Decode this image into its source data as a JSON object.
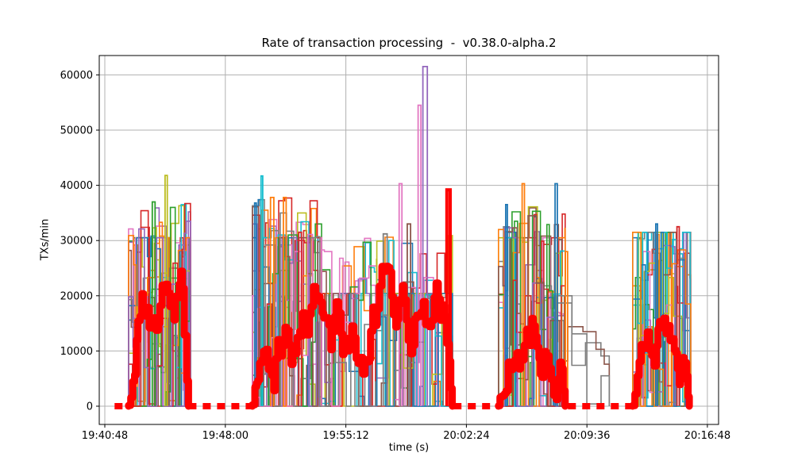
{
  "chart_data": {
    "type": "line",
    "style": "step",
    "title": "Rate of transaction processing  -  v0.38.0-alpha.2",
    "xlabel": "time (s)",
    "ylabel": "TXs/min",
    "grid": true,
    "legend": "none",
    "x_tick_labels": [
      "19:40:48",
      "19:48:00",
      "19:55:12",
      "20:02:24",
      "20:09:36",
      "20:16:48"
    ],
    "x_tick_seconds": [
      0,
      432,
      864,
      1296,
      1728,
      2160
    ],
    "y_tick_labels": [
      "0",
      "10000",
      "20000",
      "30000",
      "40000",
      "50000",
      "60000"
    ],
    "y_tick_values": [
      0,
      10000,
      20000,
      30000,
      40000,
      50000,
      60000
    ],
    "x_domain_seconds": [
      -20,
      2200
    ],
    "y_domain": [
      -3300,
      63500
    ],
    "colors": {
      "grid": "#b0b0b0",
      "spine": "#000000",
      "tick_text": "#000000",
      "background": "#ffffff",
      "overlay": "#ff0000"
    },
    "palette": [
      "#1f77b4",
      "#ff7f0e",
      "#2ca02c",
      "#d62728",
      "#9467bd",
      "#8c564b",
      "#e377c2",
      "#7f7f7f",
      "#bcbd22",
      "#17becf"
    ],
    "seed": 20380,
    "bursts": [
      {
        "t0": 85,
        "t1": 307,
        "n": 15,
        "peak": 37000,
        "cap": 30500,
        "capProb": 0.15,
        "zeroProb": 0.28,
        "stepMin": 8,
        "stepVar": 26
      },
      {
        "t0": 529,
        "t1": 777,
        "n": 15,
        "peak": 37800,
        "cap": 30500,
        "capProb": 0.15,
        "zeroProb": 0.28,
        "stepMin": 8,
        "stepVar": 26
      },
      {
        "t0": 777,
        "t1": 975,
        "n": 12,
        "peak": 30500,
        "cap": 20400,
        "capProb": 0.3,
        "zeroProb": 0.25,
        "stepMin": 10,
        "stepVar": 28
      },
      {
        "t0": 975,
        "t1": 1246,
        "n": 12,
        "peak": 31000,
        "cap": 20400,
        "capProb": 0.45,
        "zeroProb": 0.3,
        "stepMin": 12,
        "stepVar": 30
      },
      {
        "t0": 1411,
        "t1": 1650,
        "n": 14,
        "peak": 36500,
        "cap": 30500,
        "capProb": 0.12,
        "zeroProb": 0.28,
        "stepMin": 8,
        "stepVar": 26
      },
      {
        "t0": 1620,
        "t1": 1808,
        "n": 3,
        "peak": 20000,
        "cap": 20000,
        "capProb": 0.45,
        "zeroProb": 0.06,
        "stepMin": 28,
        "stepVar": 36,
        "trend": "decline",
        "palette": [
          "#8c564b",
          "#7f7f7f"
        ]
      },
      {
        "t0": 1892,
        "t1": 2100,
        "n": 14,
        "peak": 32000,
        "cap": 31500,
        "capProb": 0.15,
        "zeroProb": 0.28,
        "stepMin": 8,
        "stepVar": 26
      }
    ],
    "spikes": [
      {
        "t": 175,
        "v": 37000,
        "w": 10,
        "color": "#2ca02c"
      },
      {
        "t": 220,
        "v": 41800,
        "w": 8,
        "color": "#bcbd22"
      },
      {
        "t": 540,
        "v": 36800,
        "w": 6,
        "color": "#1f77b4"
      },
      {
        "t": 563,
        "v": 41700,
        "w": 6,
        "color": "#17becf"
      },
      {
        "t": 600,
        "v": 37800,
        "w": 12,
        "color": "#ff7f0e"
      },
      {
        "t": 645,
        "v": 37800,
        "w": 10,
        "color": "#ff7f0e"
      },
      {
        "t": 700,
        "v": 31500,
        "w": 10,
        "color": "#d62728"
      },
      {
        "t": 1005,
        "v": 31200,
        "w": 14,
        "color": "#7f7f7f"
      },
      {
        "t": 1060,
        "v": 40300,
        "w": 10,
        "color": "#e377c2"
      },
      {
        "t": 1090,
        "v": 33000,
        "w": 12,
        "color": "#8c564b"
      },
      {
        "t": 1128,
        "v": 54500,
        "w": 10,
        "color": "#e377c2"
      },
      {
        "t": 1148,
        "v": 61500,
        "w": 16,
        "color": "#9467bd"
      },
      {
        "t": 1440,
        "v": 36500,
        "w": 6,
        "color": "#1f77b4"
      },
      {
        "t": 1500,
        "v": 40300,
        "w": 8,
        "color": "#ff7f0e"
      },
      {
        "t": 1618,
        "v": 40300,
        "w": 8,
        "color": "#1f77b4"
      },
      {
        "t": 1655,
        "v": 28000,
        "w": 8,
        "color": "#ff7f0e"
      },
      {
        "t": 1978,
        "v": 33000,
        "w": 6,
        "color": "#1f77b4"
      },
      {
        "t": 2055,
        "v": 32500,
        "w": 8,
        "color": "#d62728"
      }
    ],
    "red_overlay": {
      "color": "#ff0000",
      "line_width": 9,
      "step_seconds": 7,
      "walk_range": [
        1200,
        27500
      ],
      "clusters": [
        [
          85,
          300
        ],
        [
          529,
          1246
        ],
        [
          1411,
          1650
        ],
        [
          1892,
          2095
        ]
      ],
      "zero_segments": [
        [
          35,
          85
        ],
        [
          300,
          525
        ],
        [
          1250,
          1405
        ],
        [
          1660,
          1888
        ]
      ],
      "spike": {
        "t": 1232,
        "v": 39200,
        "w": 12
      }
    }
  }
}
